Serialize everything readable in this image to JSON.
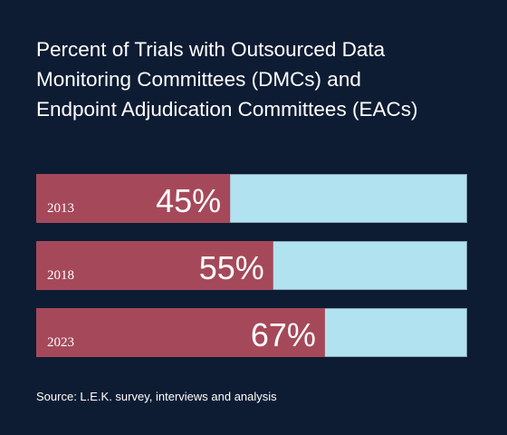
{
  "title_lines": [
    "Percent of Trials with Outsourced Data",
    "Monitoring Committees (DMCs) and",
    "Endpoint Adjudication Committees (EACs)"
  ],
  "source": "Source: L.E.K. survey, interviews and analysis",
  "colors": {
    "background": "#0e1c33",
    "bar_fill": "#a5495a",
    "bar_track": "#b1e2ef",
    "track_border": "#8aa7b4",
    "text": "#ffffff"
  },
  "chart_data": {
    "type": "bar",
    "orientation": "horizontal",
    "stacked_remainder": true,
    "categories": [
      "2013",
      "2018",
      "2023"
    ],
    "values": [
      45,
      55,
      67
    ],
    "value_labels": [
      "45%",
      "55%",
      "67%"
    ],
    "xlim": [
      0,
      100
    ],
    "title": "Percent of Trials with Outsourced Data Monitoring Committees (DMCs) and Endpoint Adjudication Committees (EACs)",
    "xlabel": "",
    "ylabel": ""
  }
}
